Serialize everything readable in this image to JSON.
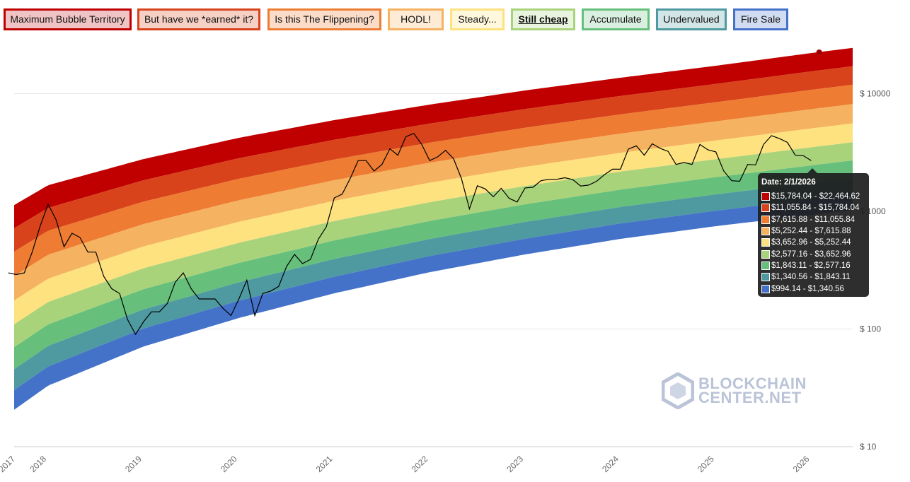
{
  "legend_buttons": [
    {
      "label": "Maximum Bubble Territory",
      "color": "#c00000",
      "fill": "#f0c4c4"
    },
    {
      "label": "But have we *earned* it?",
      "color": "#d8431b",
      "fill": "#f6d0c4"
    },
    {
      "label": "Is this The Flippening?",
      "color": "#ee7d33",
      "fill": "#fbdcc8"
    },
    {
      "label": "HODL!",
      "color": "#f5b260",
      "fill": "#fdebd6"
    },
    {
      "label": "Steady...",
      "color": "#fde27f",
      "fill": "#fff8dc"
    },
    {
      "label": "Still cheap",
      "color": "#a9d37b",
      "fill": "#e9f4de",
      "selected": true
    },
    {
      "label": "Accumulate",
      "color": "#67bf7c",
      "fill": "#d9efdf"
    },
    {
      "label": "Undervalued",
      "color": "#4e9aa0",
      "fill": "#d3e6e7"
    },
    {
      "label": "Fire Sale",
      "color": "#4472c9",
      "fill": "#d1dcf2"
    }
  ],
  "chart_data": {
    "type": "area",
    "y_scale": "log",
    "ylim": [
      10,
      30000
    ],
    "xlim": [
      "2017-08",
      "2026-06"
    ],
    "y_ticks": [
      "$ 10",
      "$ 100",
      "$ 1000",
      "$ 10000"
    ],
    "y_tick_values": [
      10,
      100,
      1000,
      10000
    ],
    "x_ticks": [
      "2017",
      "2018",
      "2019",
      "2020",
      "2021",
      "2022",
      "2023",
      "2024",
      "2025",
      "2026"
    ],
    "grid": "horizontal",
    "bands": {
      "colors": [
        "#c00000",
        "#d8431b",
        "#ee7d33",
        "#f5b260",
        "#fde27f",
        "#a9d37b",
        "#67bf7c",
        "#4e9aa0",
        "#4472c9"
      ],
      "top_edge": [
        [
          "2017-08",
          1057
        ],
        [
          "2018-01",
          1667
        ],
        [
          "2019-01",
          2780
        ],
        [
          "2020-01",
          4213
        ],
        [
          "2021-01",
          5957
        ],
        [
          "2022-01",
          8070
        ],
        [
          "2023-01",
          10640
        ],
        [
          "2024-01",
          13650
        ],
        [
          "2025-01",
          17260
        ],
        [
          "2026-01",
          22130
        ],
        [
          "2026-06",
          24380
        ]
      ],
      "bottom_edge": [
        [
          "2017-08",
          19
        ],
        [
          "2018-01",
          33
        ],
        [
          "2019-01",
          71
        ],
        [
          "2020-01",
          124
        ],
        [
          "2021-01",
          201
        ],
        [
          "2022-01",
          304
        ],
        [
          "2023-01",
          430
        ],
        [
          "2024-01",
          583
        ],
        [
          "2025-01",
          748
        ],
        [
          "2026-01",
          933
        ],
        [
          "2026-06",
          1024
        ]
      ]
    },
    "price": {
      "dates": [
        "2017-08",
        "2017-09",
        "2017-10",
        "2017-11",
        "2017-12",
        "2018-01",
        "2018-02",
        "2018-03",
        "2018-04",
        "2018-05",
        "2018-06",
        "2018-07",
        "2018-08",
        "2018-09",
        "2018-10",
        "2018-11",
        "2018-12",
        "2019-01",
        "2019-02",
        "2019-03",
        "2019-04",
        "2019-05",
        "2019-06",
        "2019-07",
        "2019-08",
        "2019-09",
        "2019-10",
        "2019-11",
        "2019-12",
        "2020-01",
        "2020-02",
        "2020-03",
        "2020-04",
        "2020-05",
        "2020-06",
        "2020-07",
        "2020-08",
        "2020-09",
        "2020-10",
        "2020-11",
        "2020-12",
        "2021-01",
        "2021-02",
        "2021-03",
        "2021-04",
        "2021-05",
        "2021-06",
        "2021-07",
        "2021-08",
        "2021-09",
        "2021-10",
        "2021-11",
        "2021-12",
        "2022-01",
        "2022-02",
        "2022-03",
        "2022-04",
        "2022-05",
        "2022-06",
        "2022-07",
        "2022-08",
        "2022-09",
        "2022-10",
        "2022-11",
        "2022-12",
        "2023-01",
        "2023-02",
        "2023-03",
        "2023-04",
        "2023-05",
        "2023-06",
        "2023-07",
        "2023-08",
        "2023-09",
        "2023-10",
        "2023-11",
        "2023-12",
        "2024-01",
        "2024-02",
        "2024-03",
        "2024-04",
        "2024-05",
        "2024-06",
        "2024-07",
        "2024-08",
        "2024-09",
        "2024-10",
        "2024-11",
        "2024-12",
        "2025-01",
        "2025-02",
        "2025-03",
        "2025-04",
        "2025-05",
        "2025-06",
        "2025-07",
        "2025-08",
        "2025-09",
        "2025-10",
        "2025-11",
        "2025-12",
        "2026-01"
      ],
      "values": [
        300,
        290,
        300,
        450,
        750,
        1150,
        850,
        500,
        650,
        600,
        450,
        450,
        280,
        220,
        200,
        120,
        90,
        115,
        140,
        140,
        165,
        250,
        300,
        220,
        180,
        180,
        180,
        150,
        130,
        180,
        260,
        130,
        200,
        210,
        230,
        340,
        430,
        360,
        390,
        580,
        740,
        1300,
        1400,
        1900,
        2700,
        2700,
        2200,
        2500,
        3400,
        3000,
        4300,
        4600,
        3700,
        2700,
        2900,
        3300,
        2800,
        1900,
        1050,
        1650,
        1550,
        1330,
        1570,
        1290,
        1200,
        1580,
        1600,
        1820,
        1870,
        1870,
        1930,
        1860,
        1640,
        1670,
        1800,
        2050,
        2280,
        2280,
        3380,
        3600,
        3000,
        3750,
        3430,
        3230,
        2500,
        2600,
        2500,
        3700,
        3330,
        3200,
        2200,
        1820,
        1800,
        2500,
        2480,
        3700,
        4400,
        4150,
        3850,
        3000,
        2970,
        2700
      ]
    },
    "tooltip": {
      "date_label": "Date: 2/1/2026",
      "ranges": [
        "$15,784.04 - $22,464.62",
        "$11,055.84 - $15,784.04",
        "$7,615.88 - $11,055.84",
        "$5,252.44 - $7,615.88",
        "$3,652.96 - $5,252.44",
        "$2,577.16 - $3,652.96",
        "$1,843.11 - $2,577.16",
        "$1,340.56 - $1,843.11",
        "$994.14 - $1,340.56"
      ],
      "boundaries": [
        22464.62,
        15784.04,
        11055.84,
        7615.88,
        5252.44,
        3652.96,
        2577.16,
        1843.11,
        1340.56,
        994.14
      ]
    }
  },
  "watermark": {
    "line1": "BLOCKCHAIN",
    "line2": "CENTER.NET"
  }
}
